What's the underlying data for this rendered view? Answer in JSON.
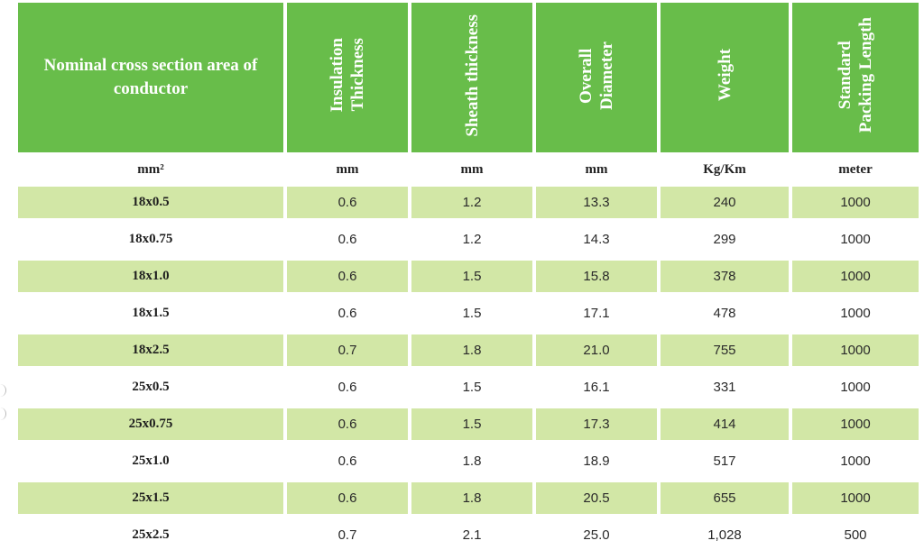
{
  "header": {
    "col1": "Nominal cross section area of conductor",
    "col2_line1": "Insulation",
    "col2_line2": "Thickness",
    "col3": "Sheath thickness",
    "col4_line1": "Overall",
    "col4_line2": "Diameter",
    "col5": "Weight",
    "col6_line1": "Standard",
    "col6_line2": "Packing Length"
  },
  "units": [
    "mm²",
    "mm",
    "mm",
    "mm",
    "Kg/Km",
    "meter"
  ],
  "rows": [
    [
      "18x0.5",
      "0.6",
      "1.2",
      "13.3",
      "240",
      "1000"
    ],
    [
      "18x0.75",
      "0.6",
      "1.2",
      "14.3",
      "299",
      "1000"
    ],
    [
      "18x1.0",
      "0.6",
      "1.5",
      "15.8",
      "378",
      "1000"
    ],
    [
      "18x1.5",
      "0.6",
      "1.5",
      "17.1",
      "478",
      "1000"
    ],
    [
      "18x2.5",
      "0.7",
      "1.8",
      "21.0",
      "755",
      "1000"
    ],
    [
      "25x0.5",
      "0.6",
      "1.5",
      "16.1",
      "331",
      "1000"
    ],
    [
      "25x0.75",
      "0.6",
      "1.5",
      "17.3",
      "414",
      "1000"
    ],
    [
      "25x1.0",
      "0.6",
      "1.8",
      "18.9",
      "517",
      "1000"
    ],
    [
      "25x1.5",
      "0.6",
      "1.8",
      "20.5",
      "655",
      "1000"
    ],
    [
      "25x2.5",
      "0.7",
      "2.1",
      "25.0",
      "1,028",
      "500"
    ]
  ],
  "colors": {
    "header_green": "#68bd4a",
    "row_shade": "#d2e7a6"
  }
}
